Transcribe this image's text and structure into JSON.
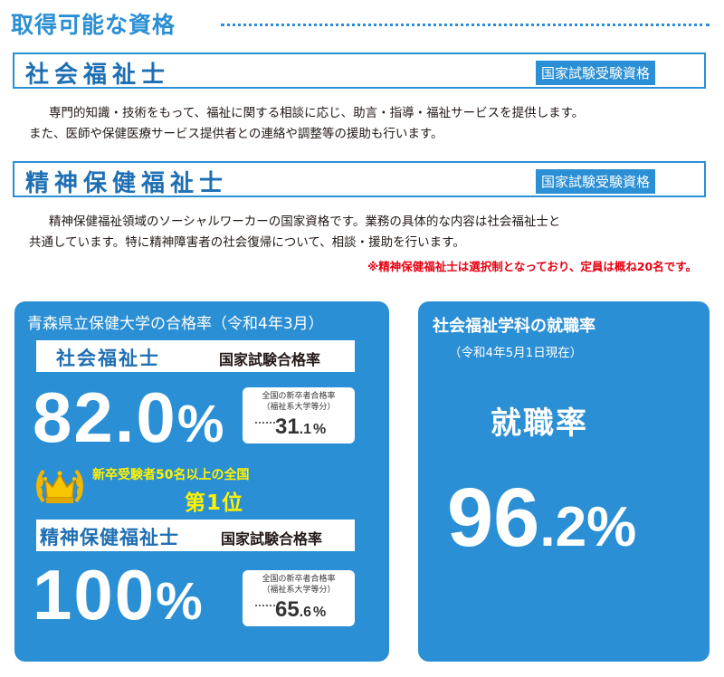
{
  "header": {
    "title": "取得可能な資格"
  },
  "qualifications": [
    {
      "name": "社会福祉士",
      "badge": "国家試験受験資格",
      "desc_line1": "専門的知識・技術をもって、福祉に関する相談に応じ、助言・指導・福祉サービスを提供します。",
      "desc_line2": "また、医師や保健医療サービス提供者との連絡や調整等の援助も行います。"
    },
    {
      "name": "精神保健福祉士",
      "badge": "国家試験受験資格",
      "desc_line1": "精神保健福祉領域のソーシャルワーカーの国家資格です。業務の具体的な内容は社会福祉士と",
      "desc_line2": "共通しています。特に精神障害者の社会復帰について、相談・援助を行います。",
      "note": "※精神保健福祉士は選択制となっており、定員は概ね20名です。"
    }
  ],
  "pass_rates": {
    "title": "青森県立保健大学の合格率（令和4年3月）",
    "exam_label": "国家試験合格率",
    "compare_label1": "全国の新卒者合格率",
    "compare_label2": "（福祉系大学等分）",
    "pct": "%",
    "items": [
      {
        "name": "社会福祉士",
        "rate": "82.0",
        "national_int": "31",
        "national_dec": ".1"
      },
      {
        "name": "精神保健福祉士",
        "rate": "100",
        "national_int": "65",
        "national_dec": ".6"
      }
    ],
    "achievement_line1": "新卒受験者50名以上の全国",
    "achievement_line2": "第1位"
  },
  "employment": {
    "title": "社会福祉学科の就職率",
    "subtitle": "（令和4年5月1日現在）",
    "label": "就職率",
    "rate_int": "96",
    "rate_dec": ".2",
    "pct": "%"
  },
  "colors": {
    "brand_blue": "#2a8fd4",
    "dark_blue": "#1e6fb3",
    "accent_yellow": "#fff200",
    "note_red": "#e60012"
  }
}
